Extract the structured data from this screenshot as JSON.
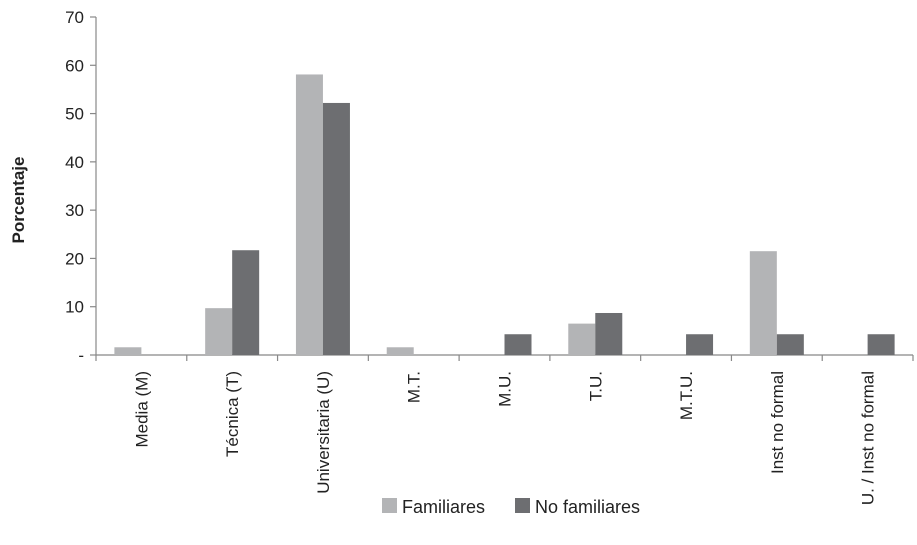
{
  "chart_data": {
    "type": "bar",
    "ylabel": "Porcentaje",
    "xlabel": "",
    "ylim": [
      0,
      70
    ],
    "yticks": [
      {
        "value": 0,
        "label": "-"
      },
      {
        "value": 10,
        "label": "10"
      },
      {
        "value": 20,
        "label": "20"
      },
      {
        "value": 30,
        "label": "30"
      },
      {
        "value": 40,
        "label": "40"
      },
      {
        "value": 50,
        "label": "50"
      },
      {
        "value": 60,
        "label": "60"
      },
      {
        "value": 70,
        "label": "70"
      }
    ],
    "categories": [
      "Media (M)",
      "Técnica (T)",
      "Universitaria (U)",
      "M.T.",
      "M.U.",
      "T.U.",
      "M.T.U.",
      "Inst no formal",
      "U. / Inst no formal"
    ],
    "series": [
      {
        "name": "Familiares",
        "color": "#b3b4b6",
        "values": [
          1.6,
          9.7,
          58.1,
          1.6,
          0,
          6.5,
          0,
          21.5,
          0
        ]
      },
      {
        "name": "No familiares",
        "color": "#6d6e71",
        "values": [
          0,
          21.7,
          52.2,
          0,
          4.3,
          8.7,
          4.3,
          4.3,
          4.3
        ]
      }
    ],
    "legend_position": "bottom",
    "grid": false
  }
}
